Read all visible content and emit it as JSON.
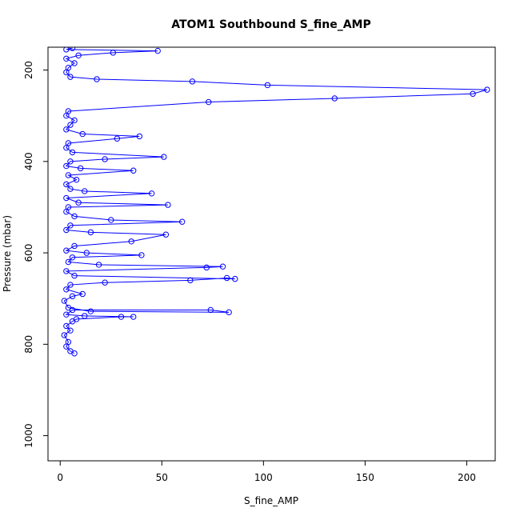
{
  "chart_data": {
    "type": "line",
    "title": "ATOM1 Southbound S_fine_AMP",
    "xlabel": "S_fine_AMP",
    "ylabel": "Pressure (mbar)",
    "xlim": [
      -6,
      214
    ],
    "ylim": [
      1055,
      150
    ],
    "y_reversed": true,
    "grid": false,
    "legend": "none",
    "x_ticks": [
      0,
      50,
      100,
      150,
      200
    ],
    "y_ticks": [
      200,
      400,
      600,
      800,
      1000
    ],
    "series_color": "#0000ff",
    "marker": "open-circle",
    "series": [
      {
        "points": [
          [
            7,
            820
          ],
          [
            5,
            815
          ],
          [
            3,
            805
          ],
          [
            4,
            795
          ],
          [
            2,
            780
          ],
          [
            5,
            770
          ],
          [
            3,
            760
          ],
          [
            6,
            750
          ],
          [
            8,
            745
          ],
          [
            30,
            740
          ],
          [
            36,
            740
          ],
          [
            12,
            738
          ],
          [
            3,
            735
          ],
          [
            6,
            725
          ],
          [
            74,
            725
          ],
          [
            83,
            730
          ],
          [
            15,
            728
          ],
          [
            4,
            720
          ],
          [
            2,
            705
          ],
          [
            6,
            695
          ],
          [
            11,
            690
          ],
          [
            3,
            680
          ],
          [
            5,
            670
          ],
          [
            22,
            665
          ],
          [
            64,
            660
          ],
          [
            82,
            655
          ],
          [
            86,
            657
          ],
          [
            7,
            650
          ],
          [
            3,
            640
          ],
          [
            72,
            632
          ],
          [
            80,
            630
          ],
          [
            19,
            626
          ],
          [
            4,
            620
          ],
          [
            6,
            610
          ],
          [
            40,
            605
          ],
          [
            13,
            600
          ],
          [
            3,
            595
          ],
          [
            7,
            585
          ],
          [
            35,
            575
          ],
          [
            52,
            560
          ],
          [
            15,
            555
          ],
          [
            3,
            550
          ],
          [
            5,
            540
          ],
          [
            60,
            532
          ],
          [
            25,
            528
          ],
          [
            7,
            520
          ],
          [
            3,
            510
          ],
          [
            4,
            500
          ],
          [
            53,
            495
          ],
          [
            9,
            490
          ],
          [
            3,
            480
          ],
          [
            45,
            470
          ],
          [
            12,
            465
          ],
          [
            5,
            460
          ],
          [
            3,
            450
          ],
          [
            8,
            440
          ],
          [
            4,
            430
          ],
          [
            36,
            420
          ],
          [
            10,
            415
          ],
          [
            3,
            410
          ],
          [
            5,
            400
          ],
          [
            22,
            395
          ],
          [
            51,
            390
          ],
          [
            6,
            380
          ],
          [
            3,
            370
          ],
          [
            4,
            360
          ],
          [
            28,
            350
          ],
          [
            39,
            345
          ],
          [
            11,
            340
          ],
          [
            3,
            330
          ],
          [
            5,
            320
          ],
          [
            7,
            310
          ],
          [
            3,
            300
          ],
          [
            4,
            290
          ],
          [
            73,
            270
          ],
          [
            135,
            262
          ],
          [
            203,
            252
          ],
          [
            210,
            243
          ],
          [
            102,
            233
          ],
          [
            65,
            225
          ],
          [
            18,
            220
          ],
          [
            5,
            215
          ],
          [
            3,
            205
          ],
          [
            4,
            195
          ],
          [
            7,
            185
          ],
          [
            3,
            175
          ],
          [
            9,
            168
          ],
          [
            26,
            162
          ],
          [
            48,
            158
          ],
          [
            3,
            155
          ],
          [
            6,
            152
          ]
        ]
      }
    ]
  }
}
